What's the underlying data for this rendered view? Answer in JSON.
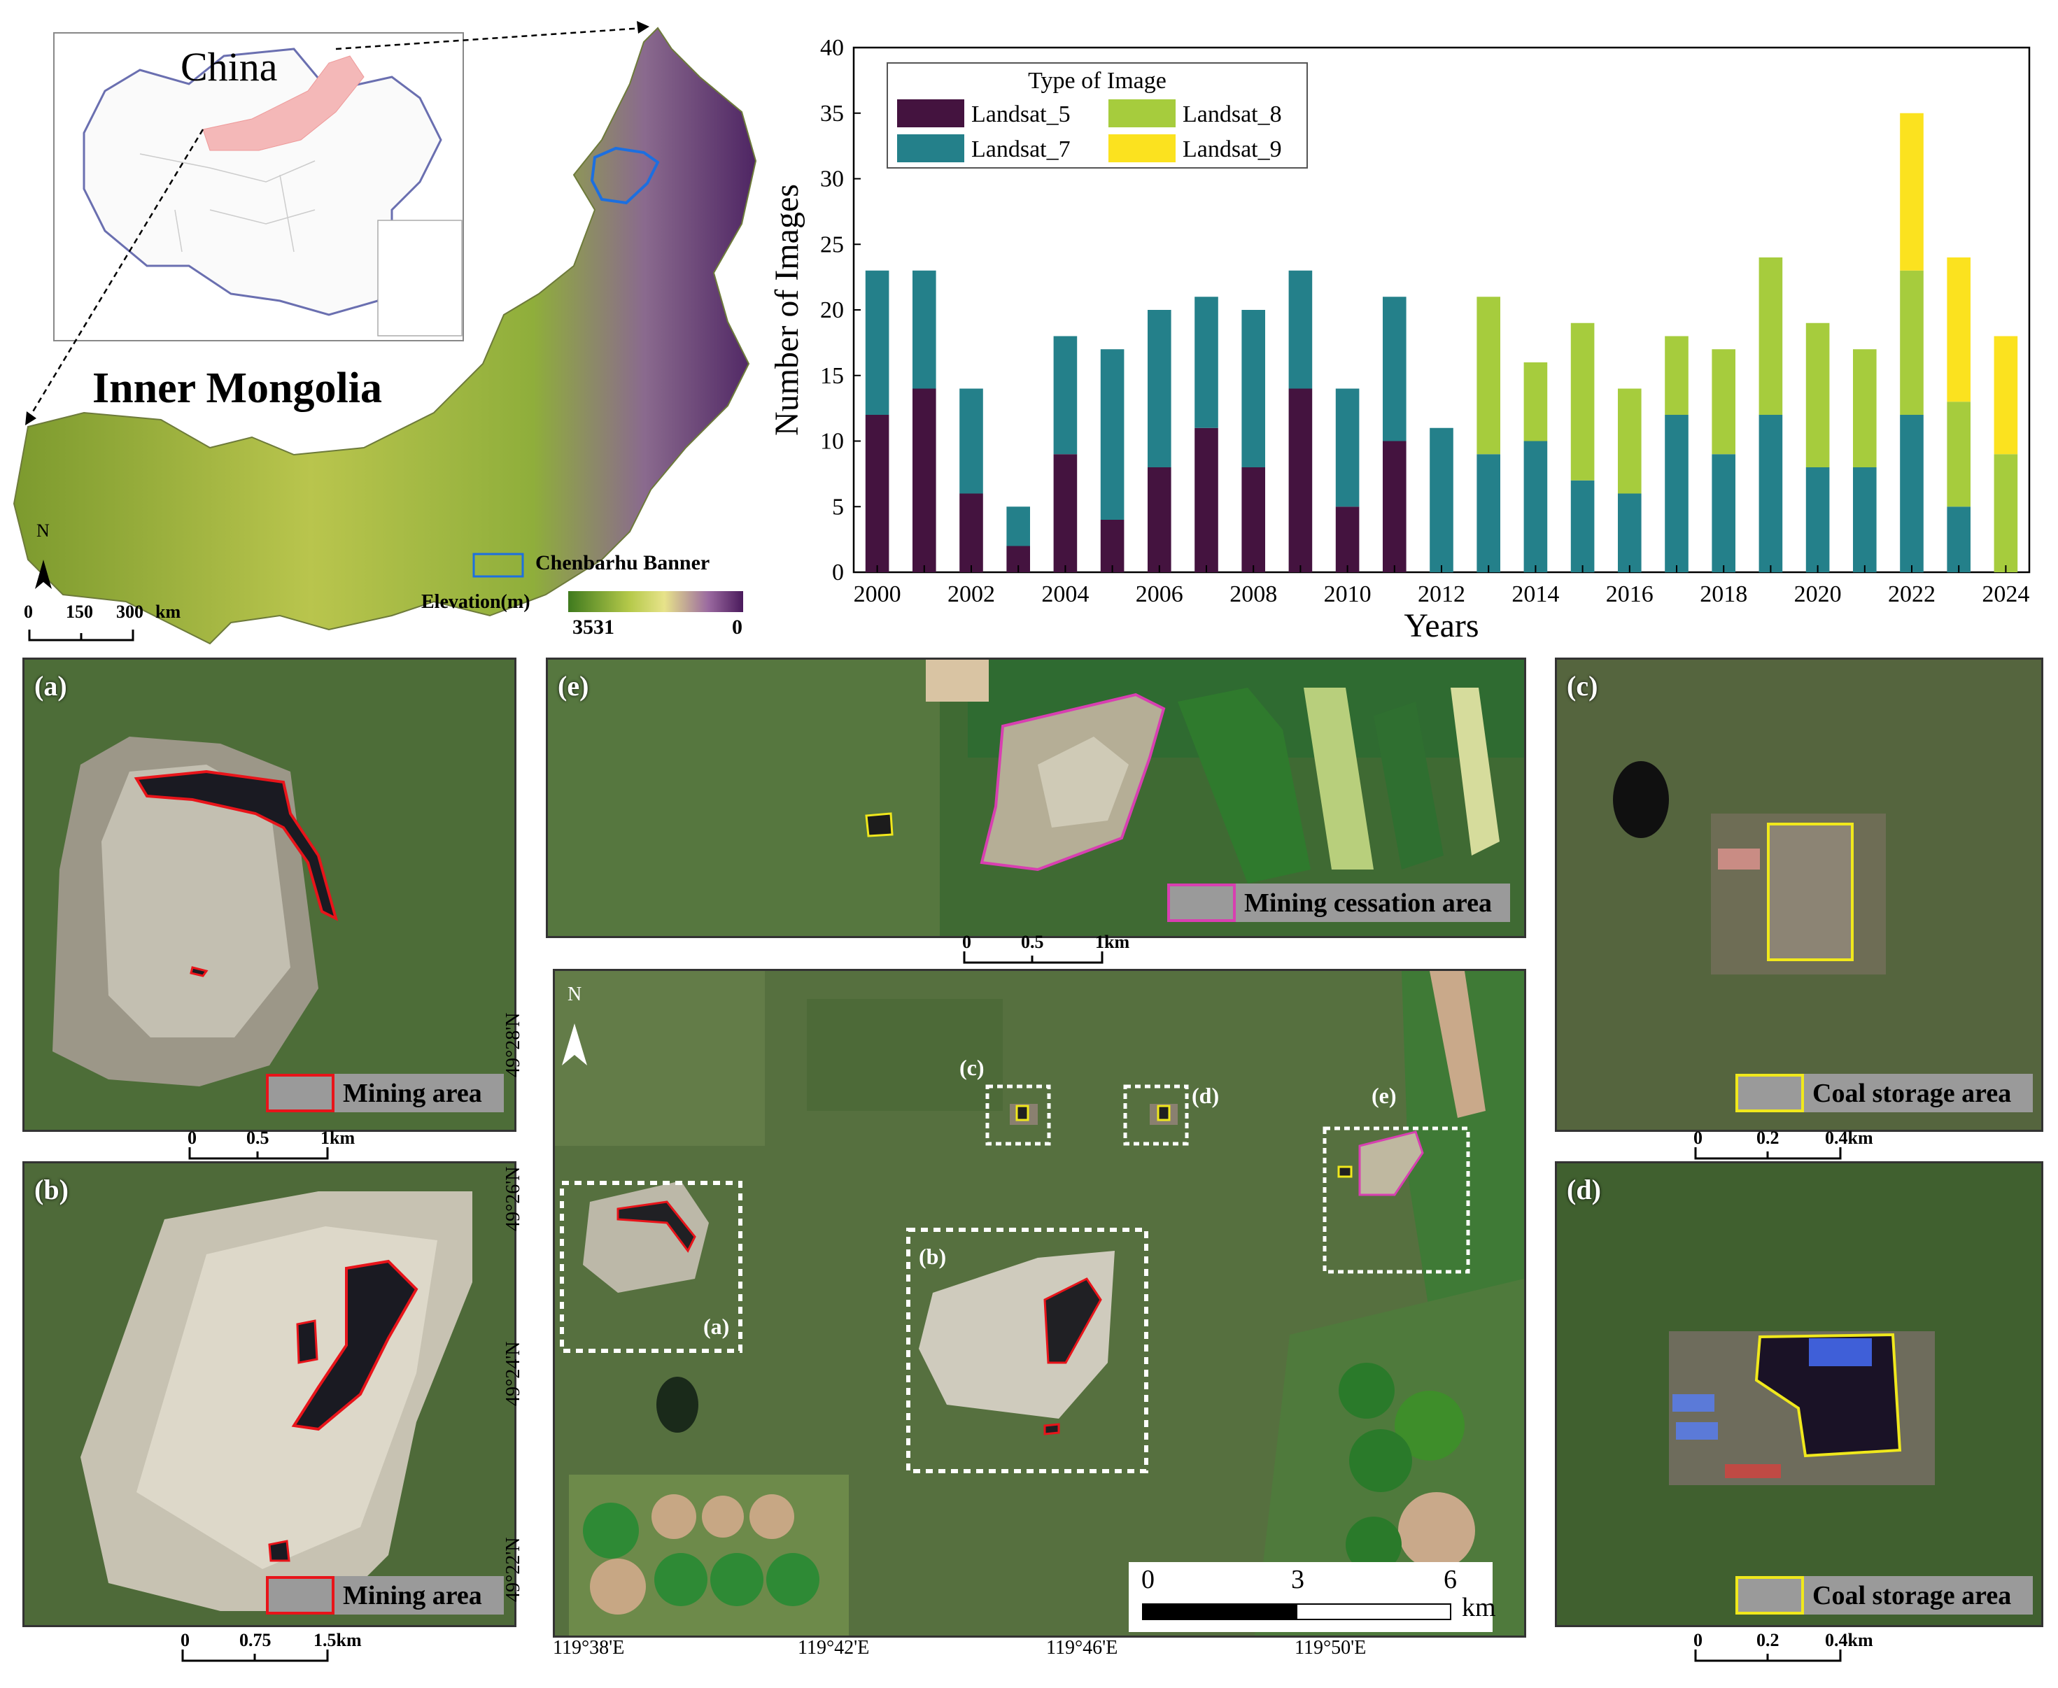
{
  "colors": {
    "landsat5": "#44133f",
    "landsat7": "#24808a",
    "landsat8": "#a6cc3d",
    "landsat9": "#fbe21f",
    "mining": "#e8141a",
    "coal": "#f0e81c",
    "cessation": "#d83fb1",
    "banner_outline": "#1c6fe0"
  },
  "chart_data": {
    "type": "bar",
    "stacked": true,
    "categories": [
      "2000",
      "2001",
      "2002",
      "2003",
      "2004",
      "2005",
      "2006",
      "2007",
      "2008",
      "2009",
      "2010",
      "2011",
      "2012",
      "2013",
      "2014",
      "2015",
      "2016",
      "2017",
      "2018",
      "2019",
      "2020",
      "2021",
      "2022",
      "2023",
      "2024"
    ],
    "series": [
      {
        "name": "Landsat_5",
        "color": "#44133f",
        "values": [
          12,
          14,
          6,
          2,
          9,
          4,
          8,
          11,
          8,
          14,
          5,
          10,
          0,
          0,
          0,
          0,
          0,
          0,
          0,
          0,
          0,
          0,
          0,
          0,
          0
        ]
      },
      {
        "name": "Landsat_7",
        "color": "#24808a",
        "values": [
          11,
          9,
          8,
          3,
          9,
          13,
          12,
          10,
          12,
          9,
          9,
          11,
          11,
          9,
          10,
          7,
          6,
          12,
          9,
          12,
          8,
          8,
          12,
          5,
          0
        ]
      },
      {
        "name": "Landsat_8",
        "color": "#a6cc3d",
        "values": [
          0,
          0,
          0,
          0,
          0,
          0,
          0,
          0,
          0,
          0,
          0,
          0,
          0,
          12,
          6,
          12,
          8,
          6,
          8,
          12,
          11,
          9,
          11,
          8,
          9
        ]
      },
      {
        "name": "Landsat_9",
        "color": "#fbe21f",
        "values": [
          0,
          0,
          0,
          0,
          0,
          0,
          0,
          0,
          0,
          0,
          0,
          0,
          0,
          0,
          0,
          0,
          0,
          0,
          0,
          0,
          0,
          0,
          12,
          11,
          9
        ]
      }
    ],
    "ylim": [
      0,
      40
    ],
    "yticks": [
      "0",
      "5",
      "10",
      "15",
      "20",
      "25",
      "30",
      "35",
      "40"
    ],
    "xticks": [
      "2000",
      "2002",
      "2004",
      "2006",
      "2008",
      "2010",
      "2012",
      "2014",
      "2016",
      "2018",
      "2020",
      "2022",
      "2024"
    ],
    "xlabel": "Years",
    "ylabel": "Number of Images",
    "legend_title": "Type of Image",
    "legend_position": "top-left"
  },
  "map": {
    "china_label": "China",
    "region_label": "Inner Mongolia",
    "north": "N",
    "scale_ticks": [
      "0",
      "150",
      "300"
    ],
    "scale_unit": "km",
    "banner_legend": "Chenbarhu Banner",
    "elevation_title": "Elevation(m)",
    "elevation_high": "3531",
    "elevation_low": "0"
  },
  "panels": {
    "a": {
      "label": "(a)",
      "legend": "Mining area",
      "scale": [
        "0",
        "0.5",
        "1km"
      ]
    },
    "b": {
      "label": "(b)",
      "legend": "Mining area",
      "scale": [
        "0",
        "0.75",
        "1.5km"
      ]
    },
    "c": {
      "label": "(c)",
      "legend": "Coal storage area",
      "scale": [
        "0",
        "0.2",
        "0.4km"
      ]
    },
    "d": {
      "label": "(d)",
      "legend": "Coal storage area",
      "scale": [
        "0",
        "0.2",
        "0.4km"
      ]
    },
    "e": {
      "label": "(e)",
      "legend": "Mining cessation area",
      "scale": [
        "0",
        "0.5",
        "1km"
      ]
    }
  },
  "overview": {
    "north": "N",
    "lat_labels": [
      "49°28'N",
      "49°26'N",
      "49°24'N",
      "49°22'N"
    ],
    "lon_labels": [
      "119°38'E",
      "119°42'E",
      "119°46'E",
      "119°50'E"
    ],
    "boxes": [
      "(a)",
      "(b)",
      "(c)",
      "(d)",
      "(e)"
    ],
    "scale_ticks": [
      "0",
      "3",
      "6"
    ],
    "scale_unit": "km"
  }
}
